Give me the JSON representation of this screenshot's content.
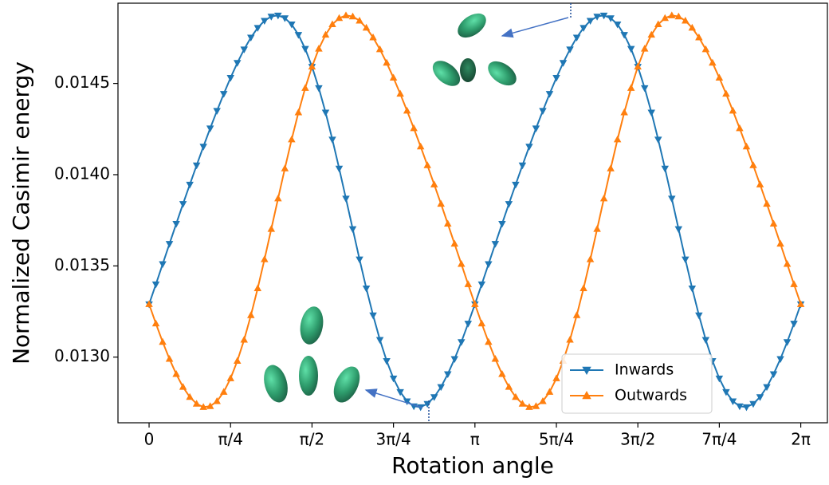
{
  "chart_data": {
    "type": "line",
    "xlabel": "Rotation angle",
    "ylabel": "Normalized Casimir energy",
    "x": [
      0,
      0.0654,
      0.1309,
      0.1963,
      0.2618,
      0.3272,
      0.3927,
      0.4581,
      0.5236,
      0.589,
      0.6545,
      0.7199,
      0.7854,
      0.8508,
      0.9163,
      0.9817,
      1.0472,
      1.1126,
      1.1781,
      1.2435,
      1.309,
      1.3744,
      1.4399,
      1.5053,
      1.5708,
      1.6362,
      1.7017,
      1.7671,
      1.8326,
      1.898,
      1.9635,
      2.0289,
      2.0944,
      2.1598,
      2.2253,
      2.2907,
      2.3562,
      2.4216,
      2.4871,
      2.5525,
      2.618,
      2.6834,
      2.7489,
      2.8143,
      2.8798,
      2.9452,
      3.0107,
      3.0761,
      3.1416,
      3.207,
      3.2725,
      3.3379,
      3.4034,
      3.4688,
      3.5343,
      3.5997,
      3.6652,
      3.7306,
      3.7961,
      3.8615,
      3.927,
      3.9924,
      4.0579,
      4.1233,
      4.1888,
      4.2542,
      4.3197,
      4.3851,
      4.4506,
      4.516,
      4.5815,
      4.6469,
      4.7124,
      4.7778,
      4.8433,
      4.9087,
      4.9742,
      5.0396,
      5.1051,
      5.1705,
      5.236,
      5.3014,
      5.3669,
      5.4323,
      5.4978,
      5.5632,
      5.6287,
      5.6941,
      5.7596,
      5.825,
      5.8905,
      5.9559,
      6.0214,
      6.0868,
      6.1523,
      6.2177,
      6.2832
    ],
    "series": [
      {
        "name": "Inwards",
        "color": "#1f77b4",
        "marker": "triangle-down",
        "values": [
          0.01329,
          0.013399,
          0.01351,
          0.013621,
          0.013731,
          0.01384,
          0.013946,
          0.014051,
          0.014154,
          0.014254,
          0.01435,
          0.014443,
          0.014531,
          0.014613,
          0.014687,
          0.014752,
          0.014805,
          0.014844,
          0.014867,
          0.014873,
          0.014858,
          0.014824,
          0.014767,
          0.01469,
          0.014592,
          0.014475,
          0.014341,
          0.014193,
          0.014034,
          0.013869,
          0.013702,
          0.013536,
          0.013377,
          0.013229,
          0.013095,
          0.012979,
          0.012883,
          0.012809,
          0.012758,
          0.012731,
          0.012726,
          0.012744,
          0.012781,
          0.012836,
          0.012907,
          0.01299,
          0.013083,
          0.013184,
          0.01329,
          0.013399,
          0.01351,
          0.013621,
          0.013731,
          0.01384,
          0.013946,
          0.014051,
          0.014154,
          0.014254,
          0.01435,
          0.014443,
          0.014531,
          0.014613,
          0.014687,
          0.014752,
          0.014805,
          0.014844,
          0.014867,
          0.014873,
          0.014858,
          0.014824,
          0.014767,
          0.01469,
          0.014592,
          0.014475,
          0.014341,
          0.014193,
          0.014034,
          0.013869,
          0.013702,
          0.013536,
          0.013377,
          0.013229,
          0.013095,
          0.012979,
          0.012883,
          0.012809,
          0.012758,
          0.012731,
          0.012726,
          0.012744,
          0.012781,
          0.012836,
          0.012907,
          0.01299,
          0.013083,
          0.013184,
          0.01329
        ]
      },
      {
        "name": "Outwards",
        "color": "#ff7f0e",
        "marker": "triangle-up",
        "values": [
          0.01329,
          0.013184,
          0.013083,
          0.01299,
          0.012907,
          0.012836,
          0.012781,
          0.012744,
          0.012726,
          0.012731,
          0.012758,
          0.012809,
          0.012883,
          0.012979,
          0.013095,
          0.013229,
          0.013377,
          0.013536,
          0.013702,
          0.013869,
          0.014034,
          0.014193,
          0.014341,
          0.014475,
          0.014592,
          0.01469,
          0.014767,
          0.014824,
          0.014858,
          0.014873,
          0.014867,
          0.014844,
          0.014805,
          0.014752,
          0.014687,
          0.014613,
          0.014531,
          0.014443,
          0.01435,
          0.014254,
          0.014154,
          0.014051,
          0.013946,
          0.01384,
          0.013731,
          0.013621,
          0.01351,
          0.013399,
          0.01329,
          0.013184,
          0.013083,
          0.01299,
          0.012907,
          0.012836,
          0.012781,
          0.012744,
          0.012726,
          0.012731,
          0.012758,
          0.012809,
          0.012883,
          0.012979,
          0.013095,
          0.013229,
          0.013377,
          0.013536,
          0.013702,
          0.013869,
          0.014034,
          0.014193,
          0.014341,
          0.014475,
          0.014592,
          0.01469,
          0.014767,
          0.014824,
          0.014858,
          0.014873,
          0.014867,
          0.014844,
          0.014805,
          0.014752,
          0.014687,
          0.014613,
          0.014531,
          0.014443,
          0.01435,
          0.014254,
          0.014154,
          0.014051,
          0.013946,
          0.01384,
          0.013731,
          0.013621,
          0.01351,
          0.013399,
          0.01329
        ]
      }
    ],
    "xlim": [
      -0.3,
      6.54
    ],
    "xticks": [
      0,
      {
        "value": 0.7854,
        "label": "π/4"
      },
      {
        "value": 1.5708,
        "label": "π/2"
      },
      {
        "value": 2.3562,
        "label": "3π/4"
      },
      {
        "value": 3.1416,
        "label": "π"
      },
      {
        "value": 3.927,
        "label": "5π/4"
      },
      {
        "value": 4.7124,
        "label": "3π/2"
      },
      {
        "value": 5.4978,
        "label": "7π/4"
      },
      {
        "value": 6.2832,
        "label": "2π"
      }
    ],
    "ylim": [
      0.01264,
      0.01494
    ],
    "yticks": [
      {
        "value": 0.013,
        "label": "0.0130"
      },
      0.0135,
      {
        "value": 0.014,
        "label": "0.0140"
      },
      0.0145
    ],
    "grid": false,
    "legend": "lower right"
  }
}
